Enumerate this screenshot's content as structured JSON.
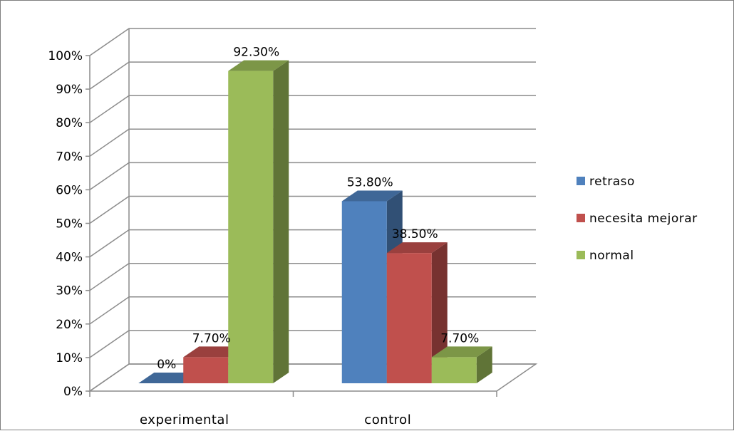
{
  "chart_data": {
    "type": "bar",
    "categories": [
      "experimental",
      "control"
    ],
    "series": [
      {
        "name": "retraso",
        "values": [
          0,
          53.8
        ],
        "color": "#4f81bd",
        "labels": [
          "0%",
          "53.80%"
        ]
      },
      {
        "name": "necesita mejorar",
        "values": [
          7.7,
          38.5
        ],
        "color": "#c0504d",
        "labels": [
          "7.70%",
          "38.50%"
        ]
      },
      {
        "name": "normal",
        "values": [
          92.3,
          7.7
        ],
        "color": "#9bbb59",
        "labels": [
          "92.30%",
          "7.70%"
        ]
      }
    ],
    "ylim": [
      0,
      100
    ],
    "y_ticks": [
      "0%",
      "10%",
      "20%",
      "30%",
      "40%",
      "50%",
      "60%",
      "70%",
      "80%",
      "90%",
      "100%"
    ],
    "grid": true,
    "legend": "right",
    "style": "3d-clustered-column"
  }
}
